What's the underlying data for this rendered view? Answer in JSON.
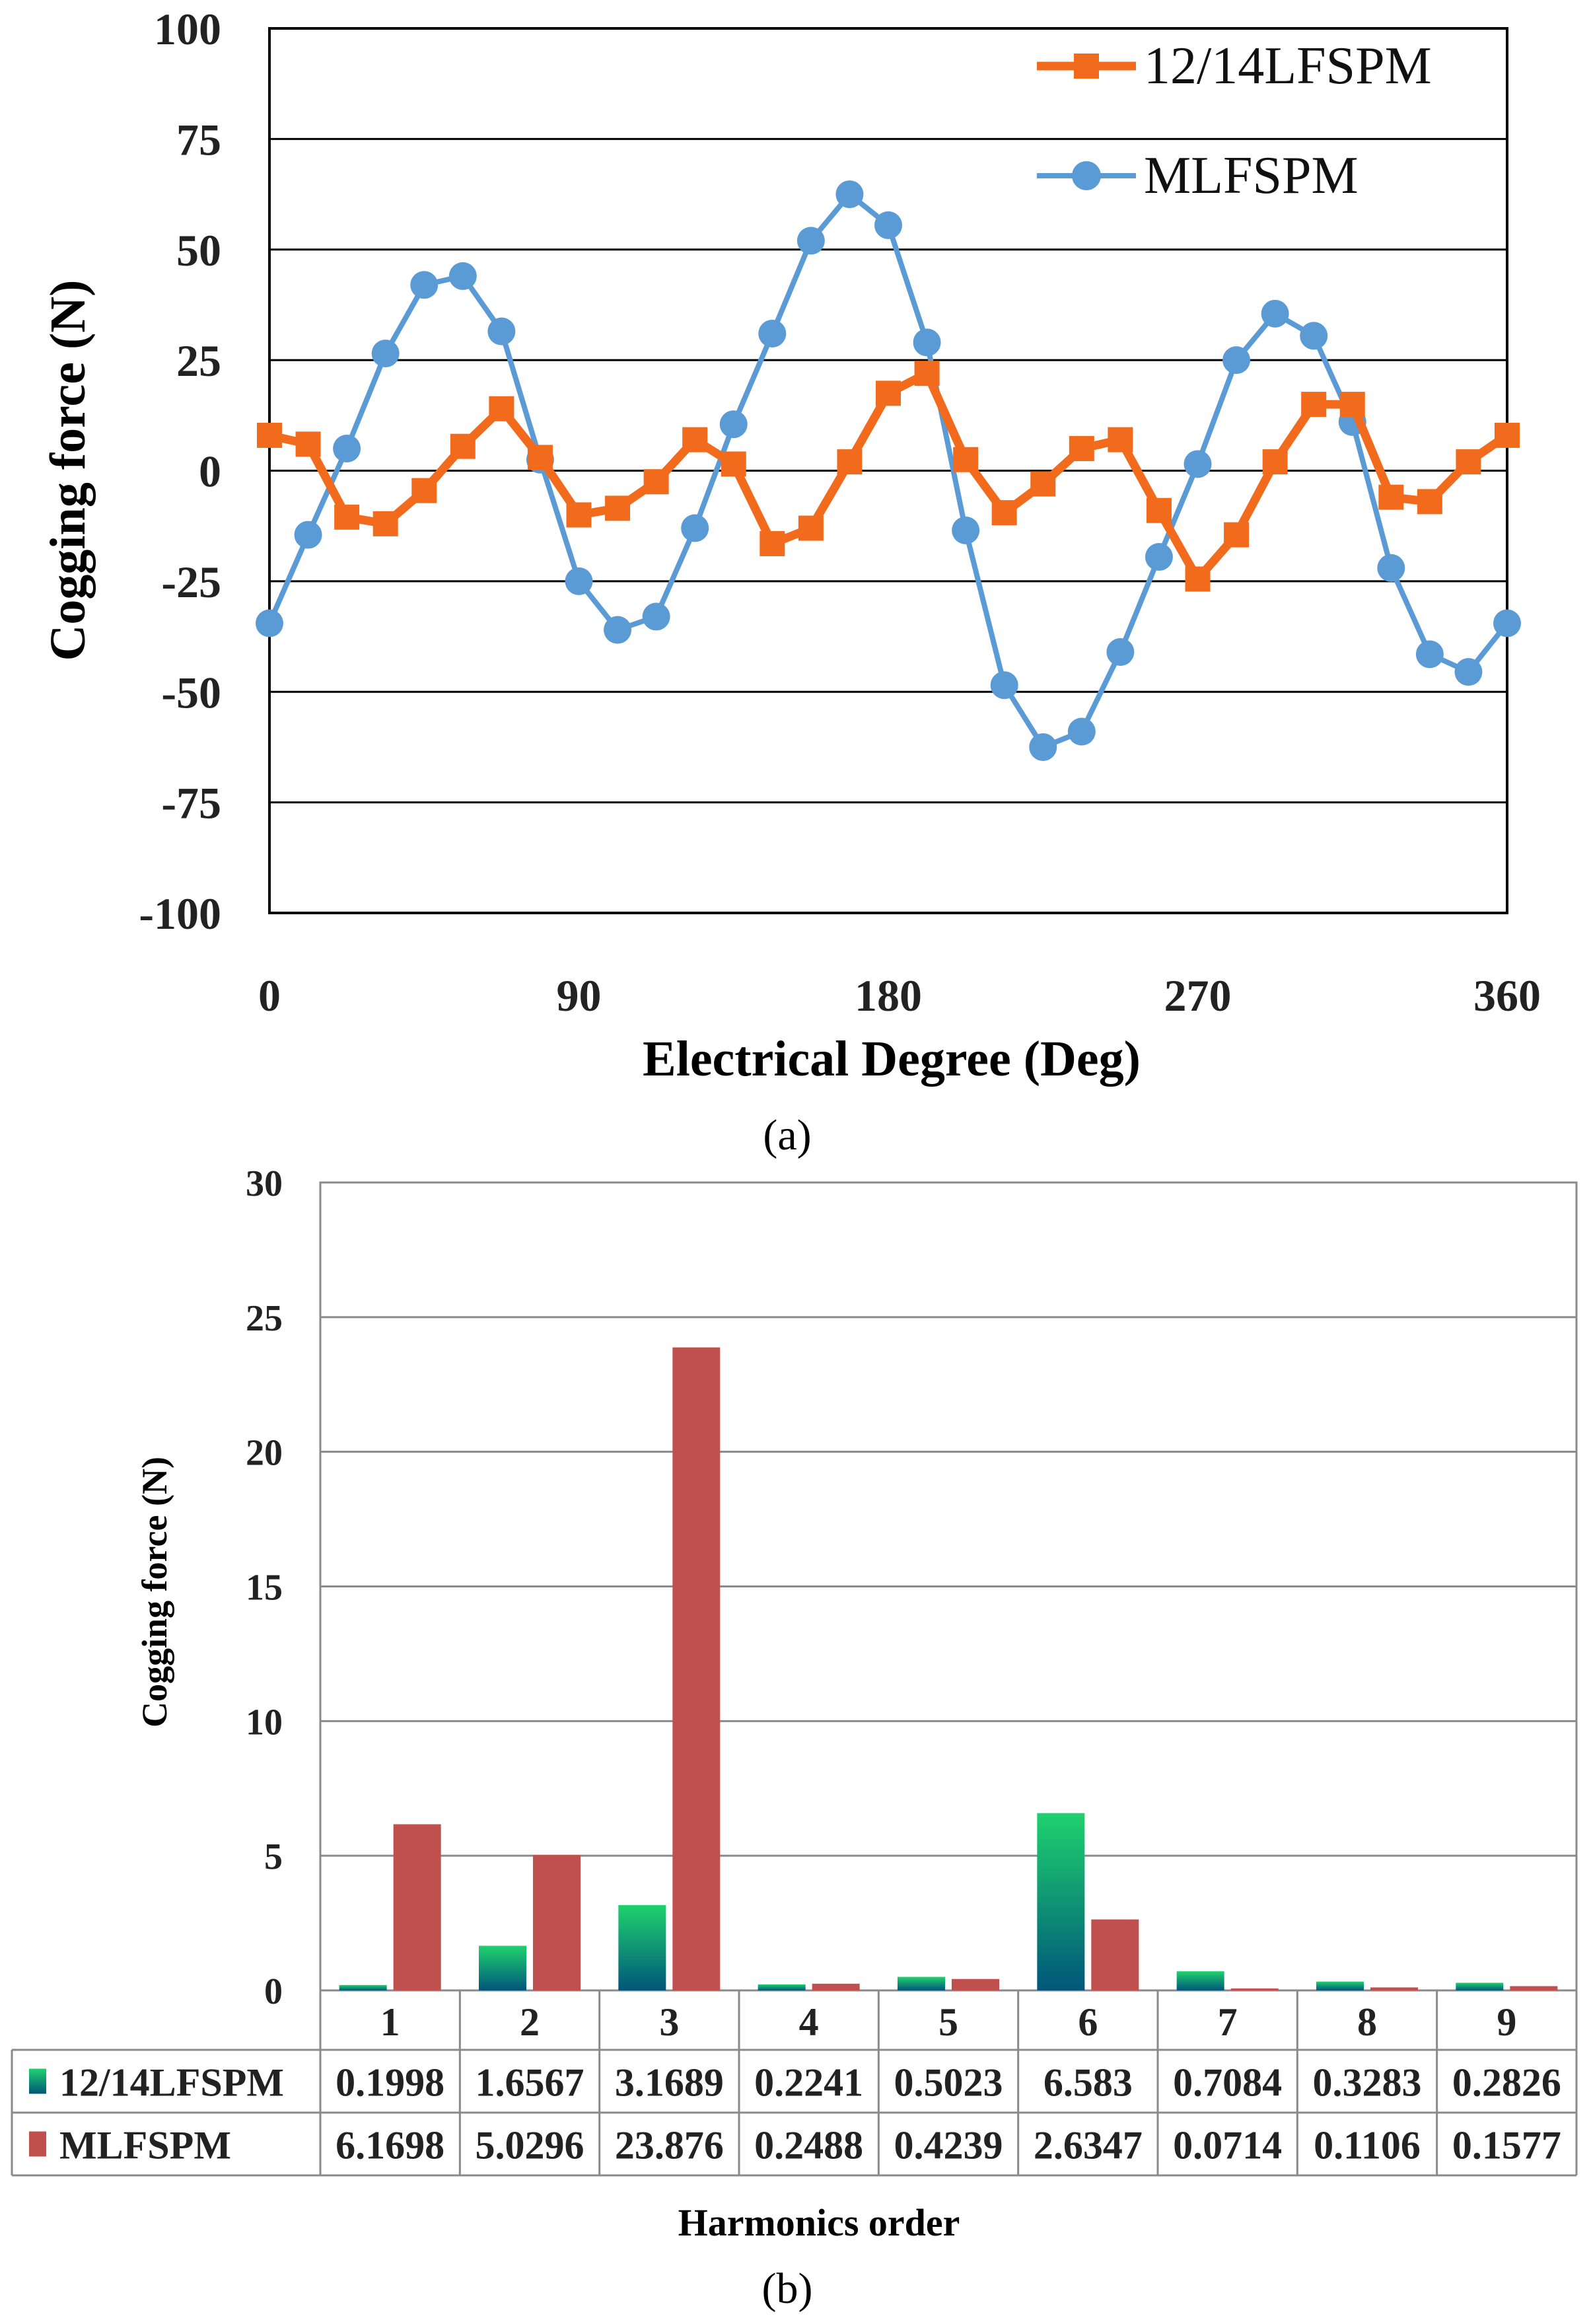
{
  "chart_data": [
    {
      "type": "line",
      "xlabel": "Electrical Degree (Deg)",
      "ylabel": "Cogging force (N)",
      "xlim": [
        0,
        360
      ],
      "ylim": [
        -100,
        100
      ],
      "xticks": [
        "0",
        "90",
        "180",
        "270",
        "360"
      ],
      "yticks": [
        "100",
        "75",
        "50",
        "25",
        "0",
        "-25",
        "-50",
        "-75",
        "-100"
      ],
      "grid": "horizontal",
      "legend": "top-right",
      "caption": "(a)",
      "x": [
        0,
        11.25,
        22.5,
        33.75,
        45,
        56.25,
        67.5,
        78.75,
        90,
        101.25,
        112.5,
        123.75,
        135,
        146.25,
        157.5,
        168.75,
        180,
        191.25,
        202.5,
        213.75,
        225,
        236.25,
        247.5,
        258.75,
        270,
        281.25,
        292.5,
        303.75,
        315,
        326.25,
        337.5,
        348.75,
        360
      ],
      "series": [
        {
          "name": "12/14LFSPM",
          "color": "#f26b1d",
          "marker": "square",
          "values": [
            8,
            6,
            -10.5,
            -12,
            -4.5,
            5.5,
            14,
            3,
            -10,
            -8.5,
            -2.5,
            7,
            1.5,
            -16.5,
            -13,
            2,
            17.5,
            22,
            2.5,
            -9.5,
            -3,
            5,
            7,
            -9,
            -24.5,
            -14.5,
            2,
            15,
            15,
            -6,
            -7,
            2,
            8
          ]
        },
        {
          "name": "MLFSPM",
          "color": "#5b9bd5",
          "marker": "circle",
          "values": [
            -34.5,
            -14.5,
            5,
            26.5,
            42,
            44,
            31.5,
            2.5,
            -25,
            -36,
            -33,
            -13,
            10.5,
            31,
            52,
            62.5,
            55.5,
            29,
            -13.5,
            -48.5,
            -62.5,
            -59,
            -41,
            -19.5,
            1.5,
            25,
            35.5,
            30.5,
            11,
            -22,
            -41.5,
            -45.5,
            -34.5
          ]
        }
      ]
    },
    {
      "type": "bar",
      "xlabel": "Harmonics order",
      "ylabel": "Cogging force (N)",
      "ylim": [
        0,
        30
      ],
      "yticks": [
        "30",
        "25",
        "20",
        "15",
        "10",
        "5",
        "0"
      ],
      "grid": "horizontal",
      "caption": "(b)",
      "categories": [
        "1",
        "2",
        "3",
        "4",
        "5",
        "6",
        "7",
        "8",
        "9"
      ],
      "series": [
        {
          "name": "12/14LFSPM",
          "color_top": "#1fd26e",
          "color_bottom": "#00567a",
          "values": [
            0.1998,
            1.6567,
            3.1689,
            0.2241,
            0.5023,
            6.583,
            0.7084,
            0.3283,
            0.2826
          ],
          "labels": [
            "0.1998",
            "1.6567",
            "3.1689",
            "0.2241",
            "0.5023",
            "6.583",
            "0.7084",
            "0.3283",
            "0.2826"
          ]
        },
        {
          "name": "MLFSPM",
          "color": "#c0504d",
          "values": [
            6.1698,
            5.0296,
            23.876,
            0.2488,
            0.4239,
            2.6347,
            0.0714,
            0.1106,
            0.1577
          ],
          "labels": [
            "6.1698",
            "5.0296",
            "23.876",
            "0.2488",
            "0.4239",
            "2.6347",
            "0.0714",
            "0.1106",
            "0.1577"
          ]
        }
      ]
    }
  ]
}
